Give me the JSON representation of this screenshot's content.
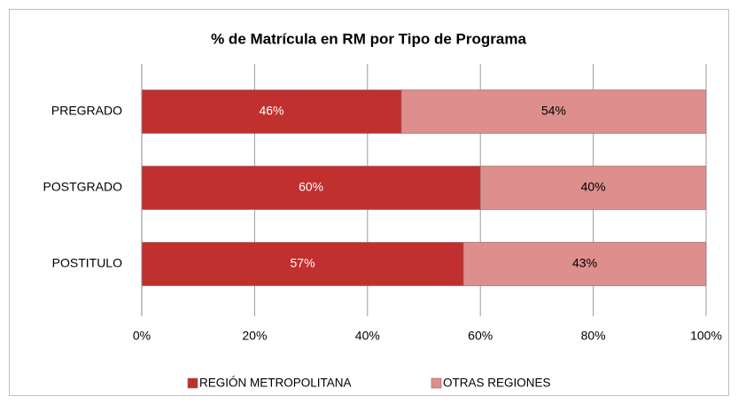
{
  "chart_data": {
    "type": "bar",
    "horizontal": true,
    "stacked": true,
    "title": "% de Matrícula en RM por Tipo de Programa",
    "categories": [
      "PREGRADO",
      "POSTGRADO",
      "POSTITULO"
    ],
    "series": [
      {
        "name": "REGIÓN METROPOLITANA",
        "color": "#c0302e",
        "values": [
          46,
          60,
          57
        ],
        "value_labels": [
          "46%",
          "60%",
          "57%"
        ]
      },
      {
        "name": "OTRAS REGIONES",
        "color": "#dd8e8d",
        "values": [
          54,
          40,
          43
        ],
        "value_labels": [
          "54%",
          "40%",
          "43%"
        ]
      }
    ],
    "xlim": [
      0,
      100
    ],
    "xticks": [
      {
        "value": 0,
        "label": "0%"
      },
      {
        "value": 20,
        "label": "20%"
      },
      {
        "value": 40,
        "label": "40%"
      },
      {
        "value": 60,
        "label": "60%"
      },
      {
        "value": 80,
        "label": "80%"
      },
      {
        "value": 100,
        "label": "100%"
      }
    ],
    "grid": true,
    "legend": "bottom"
  }
}
